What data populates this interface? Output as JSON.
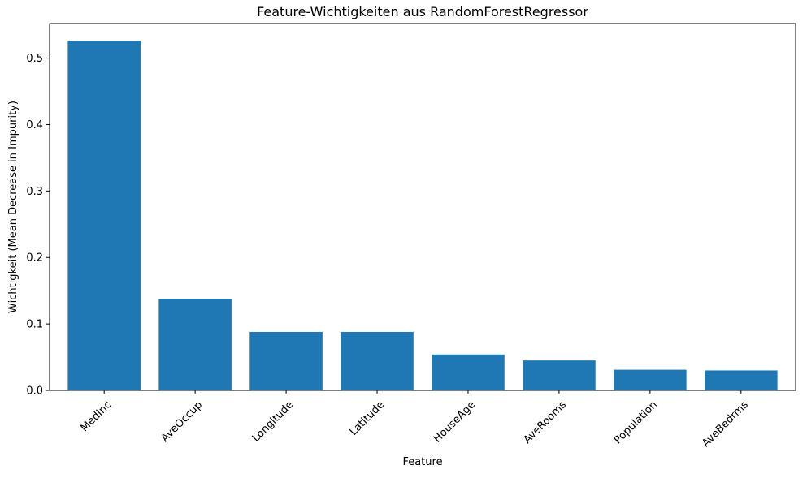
{
  "chart_data": {
    "type": "bar",
    "title": "Feature-Wichtigkeiten aus RandomForestRegressor",
    "xlabel": "Feature",
    "ylabel": "Wichtigkeit (Mean Decrease in Impurity)",
    "categories": [
      "MedInc",
      "AveOccup",
      "Longitude",
      "Latitude",
      "HouseAge",
      "AveRooms",
      "Population",
      "AveBedrms"
    ],
    "values": [
      0.526,
      0.138,
      0.088,
      0.088,
      0.054,
      0.045,
      0.031,
      0.03
    ],
    "ylim": [
      0,
      0.552
    ],
    "yticks": [
      0.0,
      0.1,
      0.2,
      0.3,
      0.4,
      0.5
    ],
    "ytick_labels": [
      "0.0",
      "0.1",
      "0.2",
      "0.3",
      "0.4",
      "0.5"
    ],
    "bar_color": "#1f77b4",
    "grid": false,
    "xtick_rotation": 45
  }
}
